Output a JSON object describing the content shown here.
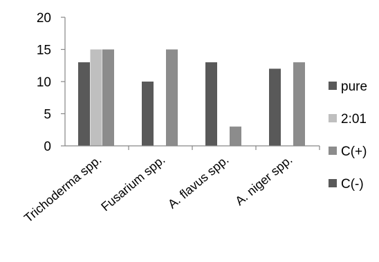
{
  "chart_data": {
    "type": "bar",
    "title": "",
    "xlabel": "",
    "ylabel": "",
    "categories": [
      "Trichoderma spp.",
      "Fusarium spp.",
      "A. flavus spp.",
      "A. niger spp."
    ],
    "series": [
      {
        "name": "pure",
        "color": "#595959",
        "values": [
          13,
          10,
          13,
          12
        ]
      },
      {
        "name": "2:01",
        "color": "#bfbfbf",
        "values": [
          15,
          0,
          0,
          0
        ]
      },
      {
        "name": "C(+)",
        "color": "#8c8c8c",
        "values": [
          15,
          15,
          3,
          13
        ]
      },
      {
        "name": "C(-)",
        "color": "#595959",
        "values": [
          0,
          0,
          0,
          0
        ]
      }
    ],
    "ylim": [
      0,
      20
    ],
    "yticks": [
      0,
      5,
      10,
      15,
      20
    ],
    "grid": false,
    "legend_position": "right"
  }
}
